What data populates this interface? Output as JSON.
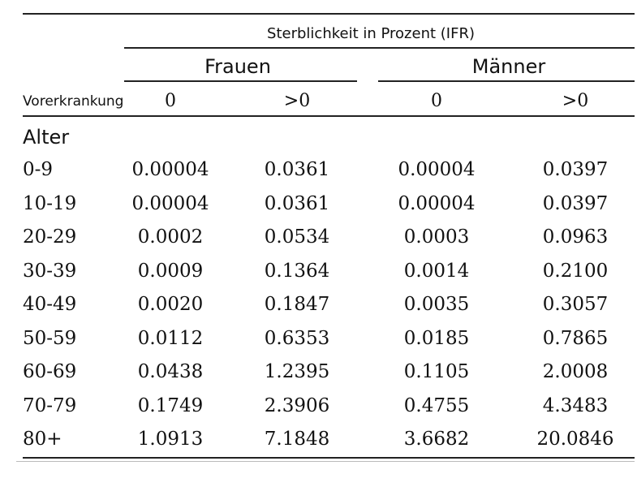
{
  "table": {
    "title": "Sterblichkeit in Prozent (IFR)",
    "groups": [
      "Frauen",
      "Männer"
    ],
    "corner_label": "Vorerkrankung",
    "subheaders": [
      "0",
      ">0",
      "0",
      ">0"
    ],
    "section_label": "Alter",
    "rows": [
      {
        "age": "0-9",
        "values": [
          "0.00004",
          "0.0361",
          "0.00004",
          "0.0397"
        ]
      },
      {
        "age": "10-19",
        "values": [
          "0.00004",
          "0.0361",
          "0.00004",
          "0.0397"
        ]
      },
      {
        "age": "20-29",
        "values": [
          "0.0002",
          "0.0534",
          "0.0003",
          "0.0963"
        ]
      },
      {
        "age": "30-39",
        "values": [
          "0.0009",
          "0.1364",
          "0.0014",
          "0.2100"
        ]
      },
      {
        "age": "40-49",
        "values": [
          "0.0020",
          "0.1847",
          "0.0035",
          "0.3057"
        ]
      },
      {
        "age": "50-59",
        "values": [
          "0.0112",
          "0.6353",
          "0.0185",
          "0.7865"
        ]
      },
      {
        "age": "60-69",
        "values": [
          "0.0438",
          "1.2395",
          "0.1105",
          "2.0008"
        ]
      },
      {
        "age": "70-79",
        "values": [
          "0.1749",
          "2.3906",
          "0.4755",
          "4.3483"
        ]
      },
      {
        "age": "80+",
        "values": [
          "1.0913",
          "7.1848",
          "3.6682",
          "20.0846"
        ]
      }
    ]
  }
}
